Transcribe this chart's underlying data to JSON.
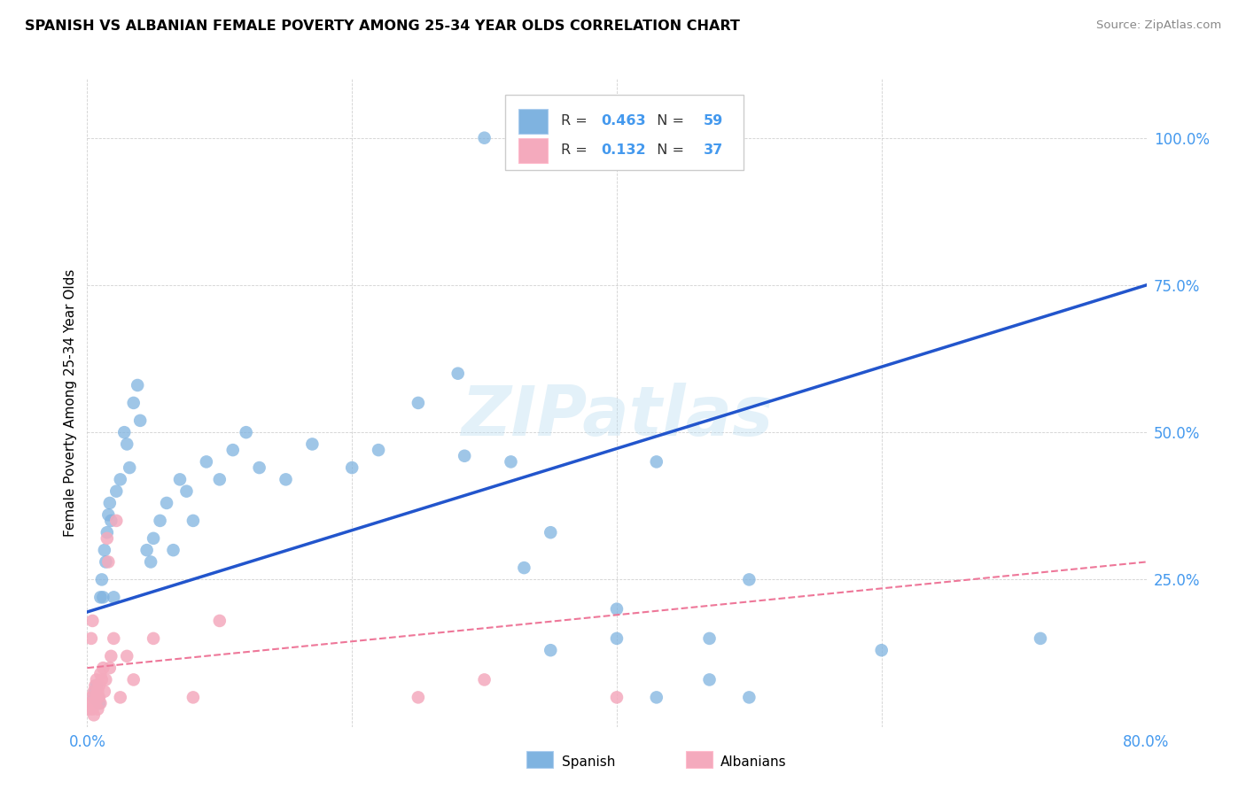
{
  "title": "SPANISH VS ALBANIAN FEMALE POVERTY AMONG 25-34 YEAR OLDS CORRELATION CHART",
  "source": "Source: ZipAtlas.com",
  "ylabel": "Female Poverty Among 25-34 Year Olds",
  "xlim": [
    0.0,
    0.8
  ],
  "ylim": [
    0.0,
    1.1
  ],
  "xticks": [
    0.0,
    0.2,
    0.4,
    0.6,
    0.8
  ],
  "xticklabels": [
    "0.0%",
    "",
    "",
    "",
    "80.0%"
  ],
  "ytick_positions": [
    0.0,
    0.25,
    0.5,
    0.75,
    1.0
  ],
  "ytick_labels": [
    "",
    "25.0%",
    "50.0%",
    "75.0%",
    "100.0%"
  ],
  "watermark": "ZIPatlas",
  "spanish_color": "#7FB3E0",
  "albanian_color": "#F4AABD",
  "spanish_R": 0.463,
  "spanish_N": 59,
  "albanian_R": 0.132,
  "albanian_N": 37,
  "spanish_line_color": "#2255CC",
  "albanian_line_color": "#EE7799",
  "tick_color": "#4499EE",
  "spanish_line_x": [
    0.0,
    0.8
  ],
  "spanish_line_y": [
    0.195,
    0.75
  ],
  "albanian_line_x": [
    0.0,
    0.8
  ],
  "albanian_line_y": [
    0.1,
    0.28
  ],
  "spanish_x": [
    0.3,
    0.005,
    0.006,
    0.007,
    0.008,
    0.009,
    0.01,
    0.011,
    0.012,
    0.013,
    0.014,
    0.015,
    0.016,
    0.017,
    0.018,
    0.02,
    0.022,
    0.025,
    0.028,
    0.03,
    0.032,
    0.035,
    0.038,
    0.04,
    0.045,
    0.048,
    0.05,
    0.055,
    0.06,
    0.065,
    0.07,
    0.075,
    0.08,
    0.09,
    0.1,
    0.11,
    0.12,
    0.13,
    0.15,
    0.17,
    0.2,
    0.22,
    0.25,
    0.28,
    0.32,
    0.35,
    0.4,
    0.43,
    0.47,
    0.5,
    0.33,
    0.35,
    0.4,
    0.43,
    0.47,
    0.5,
    0.6,
    0.72,
    0.285
  ],
  "spanish_y": [
    1.0,
    0.05,
    0.06,
    0.07,
    0.05,
    0.04,
    0.22,
    0.25,
    0.22,
    0.3,
    0.28,
    0.33,
    0.36,
    0.38,
    0.35,
    0.22,
    0.4,
    0.42,
    0.5,
    0.48,
    0.44,
    0.55,
    0.58,
    0.52,
    0.3,
    0.28,
    0.32,
    0.35,
    0.38,
    0.3,
    0.42,
    0.4,
    0.35,
    0.45,
    0.42,
    0.47,
    0.5,
    0.44,
    0.42,
    0.48,
    0.44,
    0.47,
    0.55,
    0.6,
    0.45,
    0.33,
    0.2,
    0.45,
    0.15,
    0.25,
    0.27,
    0.13,
    0.15,
    0.05,
    0.08,
    0.05,
    0.13,
    0.15,
    0.46
  ],
  "albanian_x": [
    0.001,
    0.002,
    0.003,
    0.004,
    0.005,
    0.005,
    0.006,
    0.006,
    0.007,
    0.007,
    0.008,
    0.008,
    0.009,
    0.009,
    0.01,
    0.01,
    0.011,
    0.012,
    0.013,
    0.014,
    0.015,
    0.016,
    0.017,
    0.018,
    0.02,
    0.022,
    0.025,
    0.03,
    0.035,
    0.05,
    0.08,
    0.1,
    0.25,
    0.3,
    0.4,
    0.003,
    0.004
  ],
  "albanian_y": [
    0.03,
    0.04,
    0.05,
    0.03,
    0.06,
    0.02,
    0.07,
    0.04,
    0.05,
    0.08,
    0.06,
    0.03,
    0.07,
    0.05,
    0.09,
    0.04,
    0.08,
    0.1,
    0.06,
    0.08,
    0.32,
    0.28,
    0.1,
    0.12,
    0.15,
    0.35,
    0.05,
    0.12,
    0.08,
    0.15,
    0.05,
    0.18,
    0.05,
    0.08,
    0.05,
    0.15,
    0.18
  ]
}
